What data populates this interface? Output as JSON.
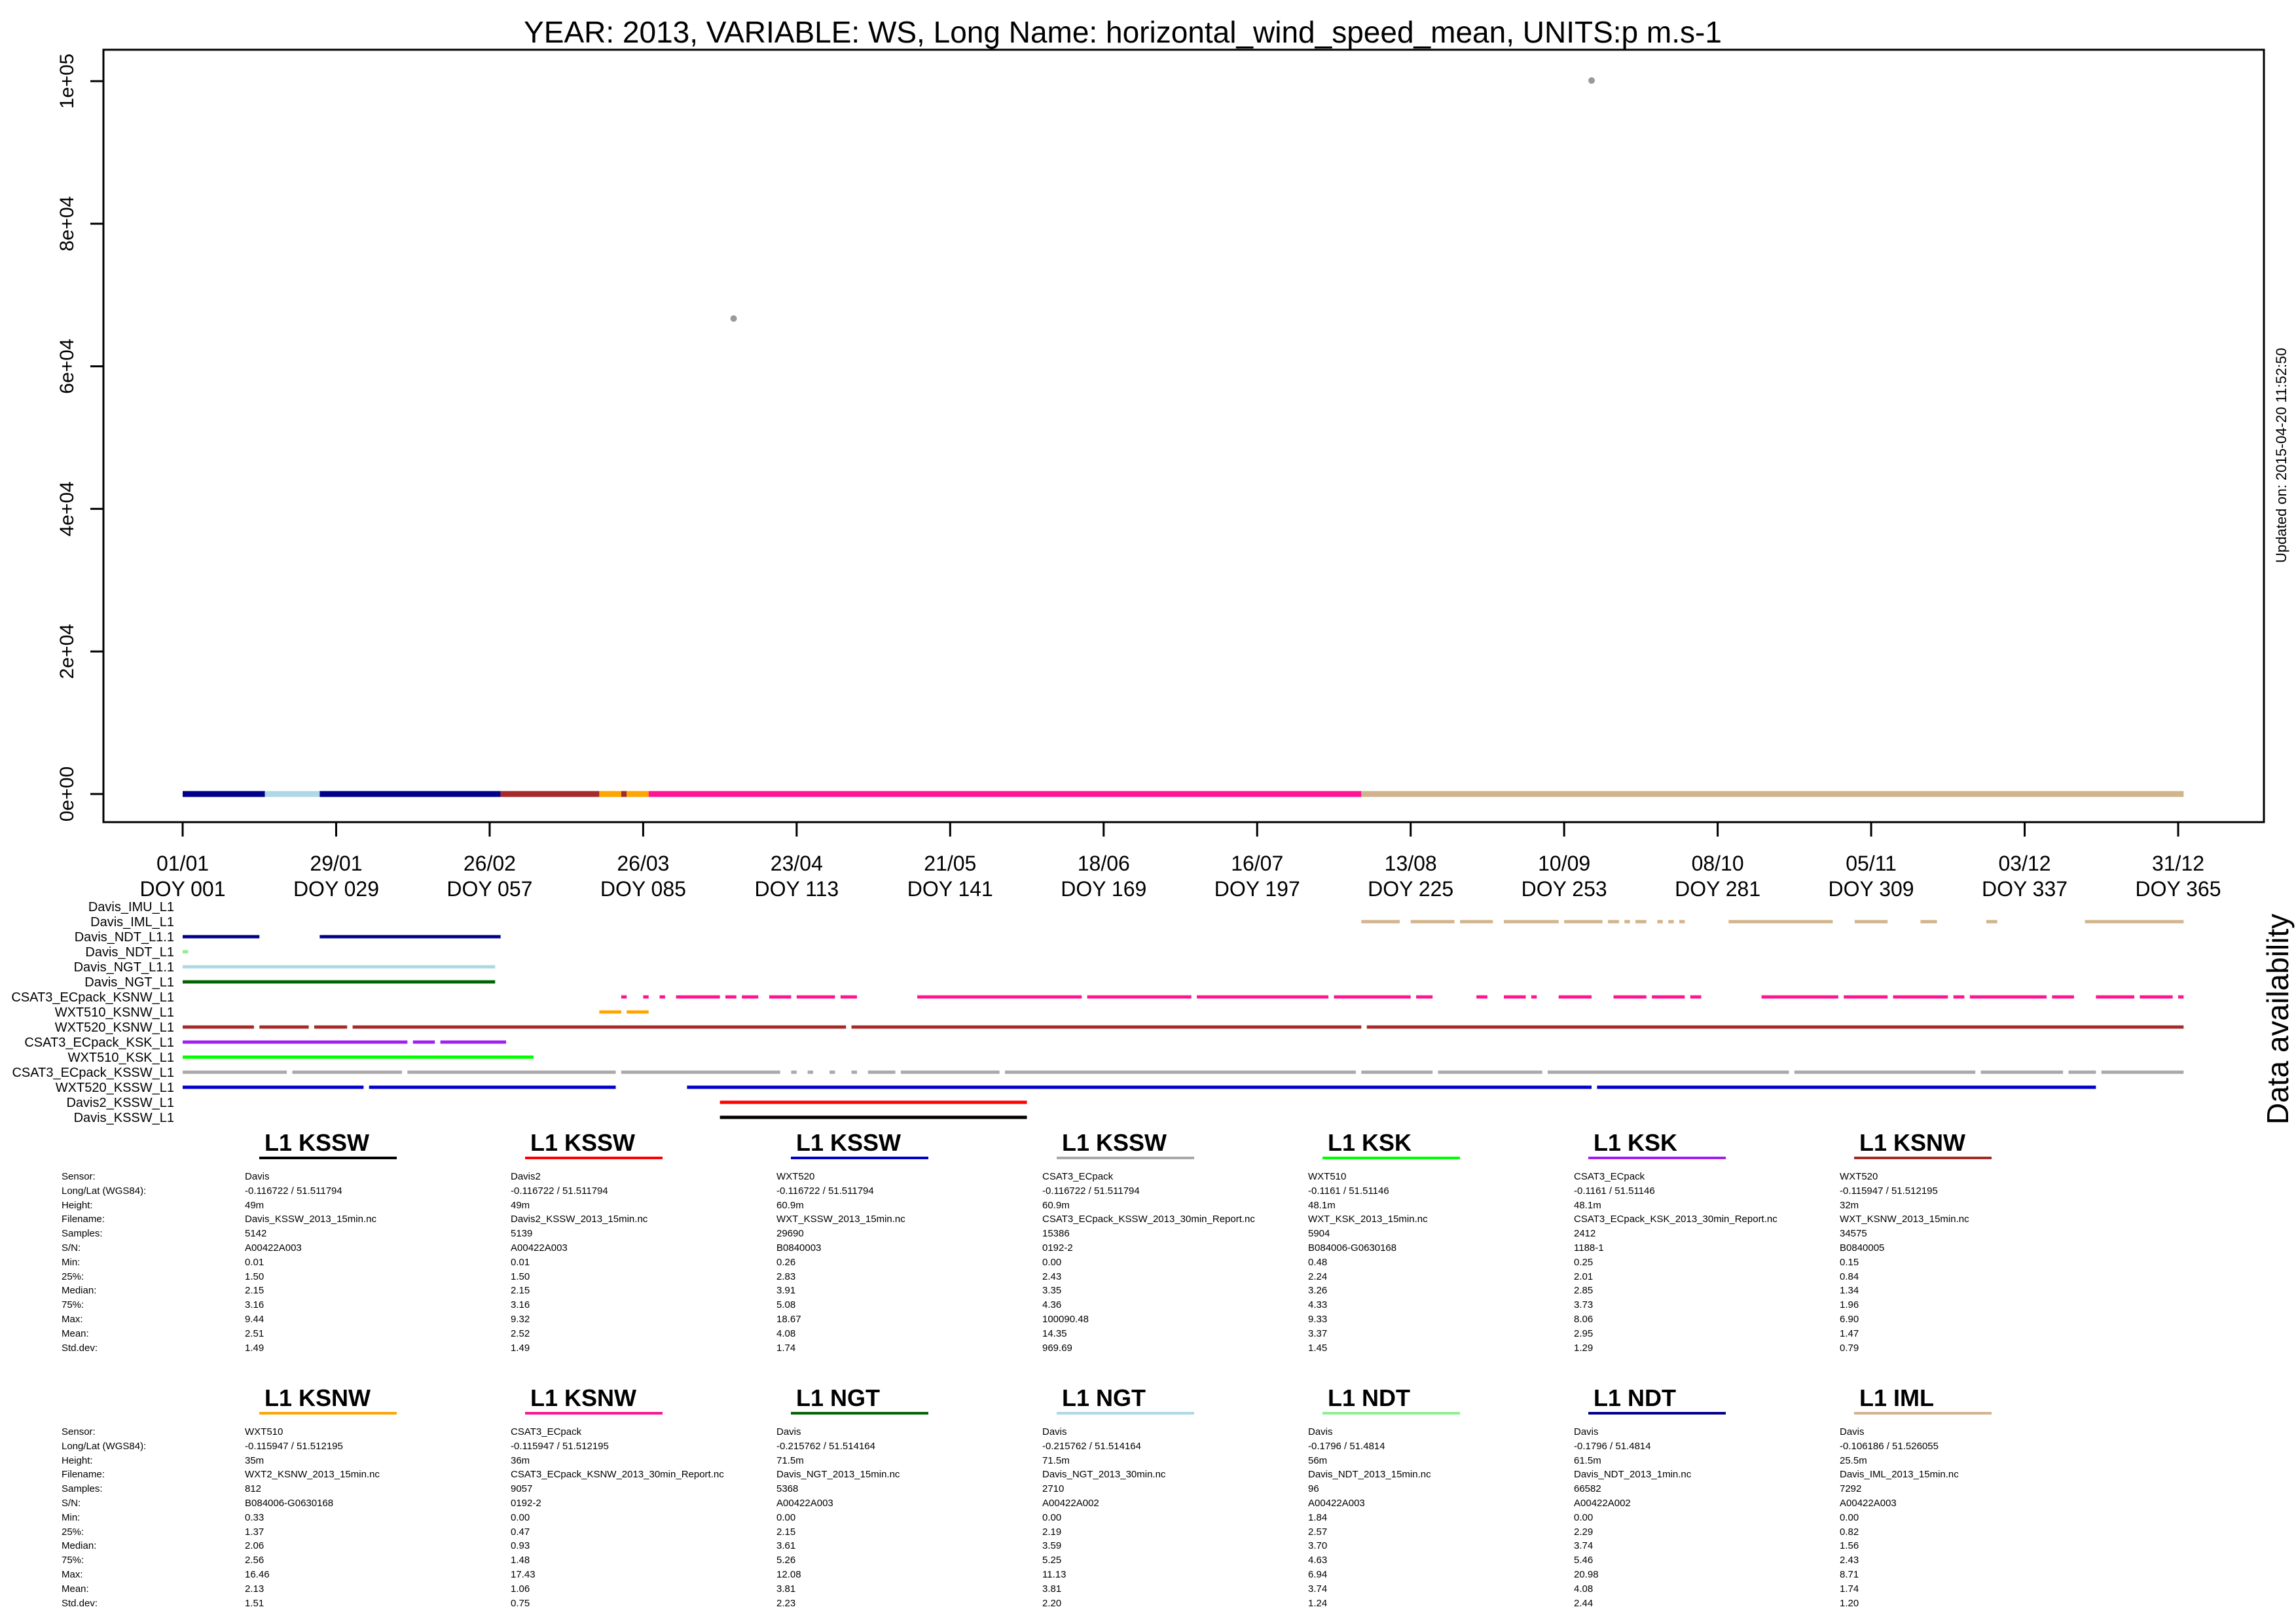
{
  "chart_data": {
    "type": "scatter",
    "title": "YEAR: 2013, VARIABLE: WS, Long Name: horizontal_wind_speed_mean, UNITS:p m.s-1",
    "updated": "Updated on: 2015-04-20 11:52:50",
    "ylim": [
      0,
      100000
    ],
    "xlim": [
      1,
      366
    ],
    "y_ticks": [
      "0e+00",
      "2e+04",
      "4e+04",
      "6e+04",
      "8e+04",
      "1e+05"
    ],
    "y_tick_values": [
      0,
      20000,
      40000,
      60000,
      80000,
      100000
    ],
    "x_ticks": [
      {
        "doy": 1,
        "date": "01/01",
        "label": "DOY 001"
      },
      {
        "doy": 29,
        "date": "29/01",
        "label": "DOY 029"
      },
      {
        "doy": 57,
        "date": "26/02",
        "label": "DOY 057"
      },
      {
        "doy": 85,
        "date": "26/03",
        "label": "DOY 085"
      },
      {
        "doy": 113,
        "date": "23/04",
        "label": "DOY 113"
      },
      {
        "doy": 141,
        "date": "21/05",
        "label": "DOY 141"
      },
      {
        "doy": 169,
        "date": "18/06",
        "label": "DOY 169"
      },
      {
        "doy": 197,
        "date": "16/07",
        "label": "DOY 197"
      },
      {
        "doy": 225,
        "date": "13/08",
        "label": "DOY 225"
      },
      {
        "doy": 253,
        "date": "10/09",
        "label": "DOY 253"
      },
      {
        "doy": 281,
        "date": "08/10",
        "label": "DOY 281"
      },
      {
        "doy": 309,
        "date": "05/11",
        "label": "DOY 309"
      },
      {
        "doy": 337,
        "date": "03/12",
        "label": "DOY 337"
      },
      {
        "doy": 365,
        "date": "31/12",
        "label": "DOY 365"
      }
    ],
    "outliers": [
      {
        "doy": 101.5,
        "value": 66700,
        "color": "#999999"
      },
      {
        "doy": 258,
        "value": 100090.48,
        "color": "#999999"
      }
    ],
    "baseline_segments": [
      {
        "from": 1,
        "to": 16,
        "color": "#00008B"
      },
      {
        "from": 16,
        "to": 26,
        "color": "#ADD8E6"
      },
      {
        "from": 26,
        "to": 59,
        "color": "#00008B"
      },
      {
        "from": 59,
        "to": 77,
        "color": "#A52A2A"
      },
      {
        "from": 77,
        "to": 81,
        "color": "#FFA500"
      },
      {
        "from": 81,
        "to": 82,
        "color": "#A52A2A"
      },
      {
        "from": 82,
        "to": 86,
        "color": "#FFA500"
      },
      {
        "from": 86,
        "to": 216,
        "color": "#FF1493"
      },
      {
        "from": 216,
        "to": 366,
        "color": "#D2B48C"
      }
    ],
    "availability_title": "Data availability",
    "availability": [
      {
        "name": "Davis_IMU_L1",
        "color": "#D2B48C",
        "segments": []
      },
      {
        "name": "Davis_IML_L1",
        "color": "#D2B48C",
        "segments": [
          [
            216,
            223
          ],
          [
            225,
            233
          ],
          [
            234,
            240
          ],
          [
            242,
            252
          ],
          [
            253,
            260
          ],
          [
            261,
            263
          ],
          [
            264,
            265
          ],
          [
            266,
            268
          ],
          [
            270,
            271
          ],
          [
            272,
            273
          ],
          [
            274,
            275
          ],
          [
            283,
            302
          ],
          [
            306,
            312
          ],
          [
            318,
            321
          ],
          [
            330,
            332
          ],
          [
            348,
            366
          ]
        ]
      },
      {
        "name": "Davis_NDT_L1.1",
        "color": "#00008B",
        "segments": [
          [
            1,
            15
          ],
          [
            26,
            59
          ]
        ]
      },
      {
        "name": "Davis_NDT_L1",
        "color": "#90EE90",
        "segments": [
          [
            1,
            2
          ]
        ]
      },
      {
        "name": "Davis_NGT_L1.1",
        "color": "#ADD8E6",
        "segments": [
          [
            1,
            58
          ]
        ]
      },
      {
        "name": "Davis_NGT_L1",
        "color": "#006400",
        "segments": [
          [
            1,
            58
          ]
        ]
      },
      {
        "name": "CSAT3_ECpack_KSNW_L1",
        "color": "#FF1493",
        "segments": [
          [
            81,
            82
          ],
          [
            85,
            86
          ],
          [
            88,
            89
          ],
          [
            91,
            99
          ],
          [
            100,
            102
          ],
          [
            103,
            106
          ],
          [
            108,
            112
          ],
          [
            113,
            120
          ],
          [
            121,
            124
          ],
          [
            135,
            165
          ],
          [
            166,
            185
          ],
          [
            186,
            210
          ],
          [
            211,
            225
          ],
          [
            226,
            229
          ],
          [
            237,
            239
          ],
          [
            242,
            246
          ],
          [
            247,
            248
          ],
          [
            252,
            258
          ],
          [
            262,
            268
          ],
          [
            269,
            275
          ],
          [
            276,
            278
          ],
          [
            289,
            303
          ],
          [
            304,
            312
          ],
          [
            313,
            323
          ],
          [
            324,
            326
          ],
          [
            327,
            341
          ],
          [
            342,
            346
          ],
          [
            350,
            357
          ],
          [
            358,
            364
          ],
          [
            365,
            366
          ]
        ]
      },
      {
        "name": "WXT510_KSNW_L1",
        "color": "#FFA500",
        "segments": [
          [
            77,
            81
          ],
          [
            82,
            86
          ]
        ]
      },
      {
        "name": "WXT520_KSNW_L1",
        "color": "#A52A2A",
        "segments": [
          [
            1,
            14
          ],
          [
            15,
            24
          ],
          [
            25,
            31
          ],
          [
            32,
            122
          ],
          [
            123,
            216
          ],
          [
            217,
            366
          ]
        ]
      },
      {
        "name": "CSAT3_ECpack_KSK_L1",
        "color": "#A020F0",
        "segments": [
          [
            1,
            42
          ],
          [
            43,
            47
          ],
          [
            48,
            60
          ]
        ]
      },
      {
        "name": "WXT510_KSK_L1",
        "color": "#00FF00",
        "segments": [
          [
            1,
            65
          ]
        ]
      },
      {
        "name": "CSAT3_ECpack_KSSW_L1",
        "color": "#A9A9A9",
        "segments": [
          [
            1,
            20
          ],
          [
            21,
            41
          ],
          [
            42,
            80
          ],
          [
            81,
            110
          ],
          [
            112,
            113
          ],
          [
            115,
            116
          ],
          [
            119,
            120
          ],
          [
            123,
            124
          ],
          [
            126,
            131
          ],
          [
            132,
            150
          ],
          [
            151,
            215
          ],
          [
            216,
            229
          ],
          [
            230,
            249
          ],
          [
            250,
            294
          ],
          [
            295,
            328
          ],
          [
            329,
            344
          ],
          [
            345,
            350
          ],
          [
            351,
            366
          ]
        ]
      },
      {
        "name": "WXT520_KSSW_L1",
        "color": "#0000CD",
        "segments": [
          [
            1,
            34
          ],
          [
            35,
            80
          ],
          [
            93,
            258
          ],
          [
            259,
            350
          ]
        ]
      },
      {
        "name": "Davis2_KSSW_L1",
        "color": "#FF0000",
        "segments": [
          [
            99,
            155
          ]
        ]
      },
      {
        "name": "Davis_KSSW_L1",
        "color": "#000000",
        "segments": [
          [
            99,
            155
          ]
        ]
      }
    ]
  },
  "stats_labels": [
    "Sensor:",
    "Long/Lat (WGS84):",
    "Height:",
    "Filename:",
    "Samples:",
    "S/N:",
    "Min:",
    "25%:",
    "Median:",
    "75%:",
    "Max:",
    "Mean:",
    "Std.dev:"
  ],
  "stats_rows": [
    [
      {
        "title": "L1 KSSW",
        "color": "#000000",
        "values": [
          "Davis",
          "-0.116722 / 51.511794",
          "49m",
          "Davis_KSSW_2013_15min.nc",
          "5142",
          "A00422A003",
          "0.01",
          "1.50",
          "2.15",
          "3.16",
          "9.44",
          "2.51",
          "1.49"
        ]
      },
      {
        "title": "L1 KSSW",
        "color": "#FF0000",
        "values": [
          "Davis2",
          "-0.116722 / 51.511794",
          "49m",
          "Davis2_KSSW_2013_15min.nc",
          "5139",
          "A00422A003",
          "0.01",
          "1.50",
          "2.15",
          "3.16",
          "9.32",
          "2.52",
          "1.49"
        ]
      },
      {
        "title": "L1 KSSW",
        "color": "#0000CD",
        "values": [
          "WXT520",
          "-0.116722 / 51.511794",
          "60.9m",
          "WXT_KSSW_2013_15min.nc",
          "29690",
          "B0840003",
          "0.26",
          "2.83",
          "3.91",
          "5.08",
          "18.67",
          "4.08",
          "1.74"
        ]
      },
      {
        "title": "L1 KSSW",
        "color": "#A9A9A9",
        "values": [
          "CSAT3_ECpack",
          "-0.116722 / 51.511794",
          "60.9m",
          "CSAT3_ECpack_KSSW_2013_30min_Report.nc",
          "15386",
          "0192-2",
          "0.00",
          "2.43",
          "3.35",
          "4.36",
          "100090.48",
          "14.35",
          "969.69"
        ]
      },
      {
        "title": "L1 KSK",
        "color": "#00FF00",
        "values": [
          "WXT510",
          "-0.1161 / 51.51146",
          "48.1m",
          "WXT_KSK_2013_15min.nc",
          "5904",
          "B084006-G0630168",
          "0.48",
          "2.24",
          "3.26",
          "4.33",
          "9.33",
          "3.37",
          "1.45"
        ]
      },
      {
        "title": "L1 KSK",
        "color": "#A020F0",
        "values": [
          "CSAT3_ECpack",
          "-0.1161 / 51.51146",
          "48.1m",
          "CSAT3_ECpack_KSK_2013_30min_Report.nc",
          "2412",
          "1188-1",
          "0.25",
          "2.01",
          "2.85",
          "3.73",
          "8.06",
          "2.95",
          "1.29"
        ]
      },
      {
        "title": "L1 KSNW",
        "color": "#A52A2A",
        "values": [
          "WXT520",
          "-0.115947 / 51.512195",
          "32m",
          "WXT_KSNW_2013_15min.nc",
          "34575",
          "B0840005",
          "0.15",
          "0.84",
          "1.34",
          "1.96",
          "6.90",
          "1.47",
          "0.79"
        ]
      }
    ],
    [
      {
        "title": "L1 KSNW",
        "color": "#FFA500",
        "values": [
          "WXT510",
          "-0.115947 / 51.512195",
          "35m",
          "WXT2_KSNW_2013_15min.nc",
          "812",
          "B084006-G0630168",
          "0.33",
          "1.37",
          "2.06",
          "2.56",
          "16.46",
          "2.13",
          "1.51"
        ]
      },
      {
        "title": "L1 KSNW",
        "color": "#FF1493",
        "values": [
          "CSAT3_ECpack",
          "-0.115947 / 51.512195",
          "36m",
          "CSAT3_ECpack_KSNW_2013_30min_Report.nc",
          "9057",
          "0192-2",
          "0.00",
          "0.47",
          "0.93",
          "1.48",
          "17.43",
          "1.06",
          "0.75"
        ]
      },
      {
        "title": "L1 NGT",
        "color": "#006400",
        "values": [
          "Davis",
          "-0.215762 / 51.514164",
          "71.5m",
          "Davis_NGT_2013_15min.nc",
          "5368",
          "A00422A003",
          "0.00",
          "2.15",
          "3.61",
          "5.26",
          "12.08",
          "3.81",
          "2.23"
        ]
      },
      {
        "title": "L1 NGT",
        "color": "#ADD8E6",
        "values": [
          "Davis",
          "-0.215762 / 51.514164",
          "71.5m",
          "Davis_NGT_2013_30min.nc",
          "2710",
          "A00422A002",
          "0.00",
          "2.19",
          "3.59",
          "5.25",
          "11.13",
          "3.81",
          "2.20"
        ]
      },
      {
        "title": "L1 NDT",
        "color": "#90EE90",
        "values": [
          "Davis",
          "-0.1796 / 51.4814",
          "56m",
          "Davis_NDT_2013_15min.nc",
          "96",
          "A00422A003",
          "1.84",
          "2.57",
          "3.70",
          "4.63",
          "6.94",
          "3.74",
          "1.24"
        ]
      },
      {
        "title": "L1 NDT",
        "color": "#00008B",
        "values": [
          "Davis",
          "-0.1796 / 51.4814",
          "61.5m",
          "Davis_NDT_2013_1min.nc",
          "66582",
          "A00422A002",
          "0.00",
          "2.29",
          "3.74",
          "5.46",
          "20.98",
          "4.08",
          "2.44"
        ]
      },
      {
        "title": "L1 IML",
        "color": "#D2B48C",
        "values": [
          "Davis",
          "-0.106186 / 51.526055",
          "25.5m",
          "Davis_IML_2013_15min.nc",
          "7292",
          "A00422A003",
          "0.00",
          "0.82",
          "1.56",
          "2.43",
          "8.71",
          "1.74",
          "1.20"
        ]
      }
    ]
  ]
}
